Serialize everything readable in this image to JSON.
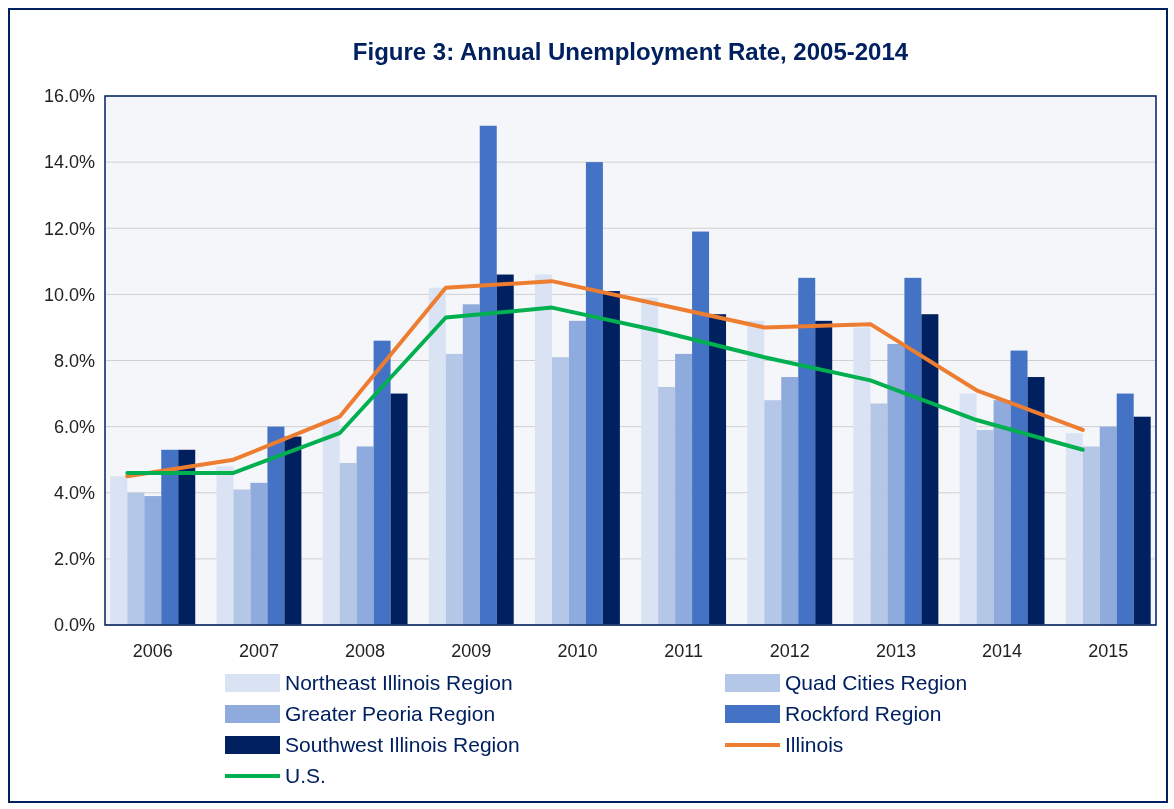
{
  "chart_data": {
    "type": "bar",
    "title": "Figure 3: Annual Unemployment Rate, 2005-2014",
    "categories": [
      "2006",
      "2007",
      "2008",
      "2009",
      "2010",
      "2011",
      "2012",
      "2013",
      "2014",
      "2015"
    ],
    "series": [
      {
        "name": "Northeast Illinois Region",
        "color": "#dae3f3",
        "values": [
          4.5,
          4.8,
          6.2,
          10.2,
          10.6,
          9.9,
          9.2,
          9.0,
          7.0,
          5.8
        ]
      },
      {
        "name": "Quad Cities Region",
        "color": "#b4c7e7",
        "values": [
          4.0,
          4.1,
          4.9,
          8.2,
          8.1,
          7.2,
          6.8,
          6.7,
          5.9,
          5.4
        ]
      },
      {
        "name": "Greater Peoria Region",
        "color": "#8faadc",
        "values": [
          3.9,
          4.3,
          5.4,
          9.7,
          9.2,
          8.2,
          7.5,
          8.5,
          6.8,
          6.0
        ]
      },
      {
        "name": "Rockford Region",
        "color": "#4472c4",
        "values": [
          5.3,
          6.0,
          8.6,
          15.1,
          14.0,
          11.9,
          10.5,
          10.5,
          8.3,
          7.0
        ]
      },
      {
        "name": "Southwest Illinois Region",
        "color": "#002060",
        "values": [
          5.3,
          5.7,
          7.0,
          10.6,
          10.1,
          9.4,
          9.2,
          9.4,
          7.5,
          6.3
        ]
      },
      {
        "name": "Illinois",
        "color": "#ed7d31",
        "type": "line",
        "values": [
          4.5,
          5.0,
          6.3,
          10.2,
          10.4,
          9.7,
          9.0,
          9.1,
          7.1,
          5.9
        ]
      },
      {
        "name": "U.S.",
        "color": "#00b050",
        "type": "line",
        "values": [
          4.6,
          4.6,
          5.8,
          9.3,
          9.6,
          8.9,
          8.1,
          7.4,
          6.2,
          5.3
        ]
      }
    ],
    "ylim": [
      0,
      16
    ],
    "yticks": [
      {
        "value": 0,
        "label": "0.0%"
      },
      {
        "value": 2,
        "label": "2.0%"
      },
      {
        "value": 4,
        "label": "4.0%"
      },
      {
        "value": 6,
        "label": "6.0%"
      },
      {
        "value": 8,
        "label": "8.0%"
      },
      {
        "value": 10,
        "label": "10.0%"
      },
      {
        "value": 12,
        "label": "12.0%"
      },
      {
        "value": 14,
        "label": "14.0%"
      },
      {
        "value": 16,
        "label": "16.0%"
      }
    ],
    "grid": "y",
    "legend": "bottom",
    "marker": "none",
    "line_style": "solid"
  }
}
